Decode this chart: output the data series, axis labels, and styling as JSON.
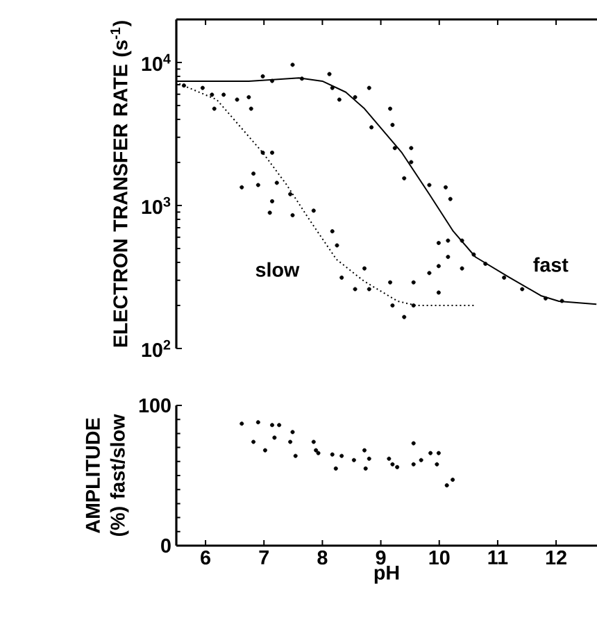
{
  "chart_data": [
    {
      "type": "scatter",
      "ylabel": "ELECTRON TRANSFER RATE (s$^{-1}$)",
      "log": "y",
      "xlim": [
        5.5,
        12.7
      ],
      "ylim": [
        100,
        20000
      ],
      "xticks": [
        6,
        7,
        8,
        9,
        10,
        11,
        12
      ],
      "yticks": [
        {
          "value": 100,
          "label": "10$^{2}$"
        },
        {
          "value": 1000,
          "label": "10$^{3}$"
        },
        {
          "value": 10000,
          "label": "10$^{4}$"
        }
      ],
      "tick_labels": "y",
      "annotations": [
        "slow",
        "fast"
      ],
      "marker": "circle",
      "series": [
        {
          "color": "#000000",
          "x": [
            5.63,
            5.95,
            6.11,
            6.15,
            6.31,
            6.54,
            6.74,
            6.78,
            6.98,
            7.14,
            7.49,
            7.65,
            8.12,
            8.17,
            8.29,
            8.56,
            8.8,
            8.84,
            9.16,
            9.2,
            9.24,
            9.52,
            9.52,
            9.4,
            9.83,
            10.11,
            10.19,
            6.98,
            7.14,
            6.62,
            6.82,
            6.9,
            7.22,
            7.14,
            7.1,
            7.45,
            7.49,
            7.85,
            8.17,
            8.25,
            8.72,
            8.33,
            8.56,
            8.8,
            9.16,
            9.2,
            9.4,
            9.56,
            9.56,
            9.83,
            9.99,
            9.99,
            9.99,
            10.15,
            10.39,
            10.15,
            10.39,
            10.59,
            10.79,
            11.11,
            11.42,
            11.82,
            12.1
          ],
          "values": [
            6900,
            6640,
            5950,
            4750,
            5950,
            5500,
            5720,
            4750,
            8000,
            7430,
            9630,
            7710,
            8300,
            6640,
            5500,
            5720,
            6640,
            3520,
            4750,
            3660,
            2520,
            2520,
            2010,
            1550,
            1390,
            1340,
            1110,
            2340,
            2340,
            1340,
            1670,
            1390,
            1440,
            1070,
            890,
            1200,
            855,
            920,
            660,
            526,
            363,
            313,
            260,
            260,
            290,
            200,
            166,
            200,
            290,
            337,
            377,
            246,
            547,
            568,
            568,
            437,
            363,
            454,
            391,
            313,
            260,
            224,
            215
          ]
        },
        {
          "type": "line",
          "color": "#000000",
          "marker": "none",
          "line_style": "solid",
          "x": [
            5.5,
            6.74,
            7.2,
            7.6,
            8.0,
            8.4,
            8.71,
            9.36,
            9.83,
            10.24,
            10.62,
            11.19,
            11.74,
            12.05,
            12.69
          ],
          "values": [
            7400,
            7400,
            7600,
            7800,
            7400,
            6200,
            4800,
            2340,
            1200,
            660,
            436,
            316,
            234,
            214,
            204
          ]
        },
        {
          "type": "line",
          "color": "#000000",
          "marker": "none",
          "line_style": "dotted",
          "x": [
            5.55,
            6.19,
            6.57,
            6.98,
            7.38,
            7.76,
            8.24,
            8.71,
            9.29,
            9.6,
            9.9,
            10.62
          ],
          "values": [
            7100,
            5500,
            3650,
            2340,
            1410,
            815,
            420,
            296,
            214,
            200,
            200,
            200
          ]
        }
      ]
    },
    {
      "type": "scatter",
      "ylabel": "AMPLITUDE (%) fast/slow",
      "xlabel": "pH",
      "xlim": [
        5.5,
        12.7
      ],
      "ylim": [
        0,
        100
      ],
      "xticks": [
        6,
        7,
        8,
        9,
        10,
        11,
        12
      ],
      "yticks": [
        0,
        100
      ],
      "marker": "circle",
      "series": [
        {
          "color": "#000000",
          "x": [
            6.62,
            6.9,
            6.82,
            7.02,
            7.14,
            7.26,
            7.18,
            7.45,
            7.49,
            7.54,
            7.85,
            7.89,
            7.93,
            8.17,
            8.23,
            8.33,
            8.54,
            8.72,
            8.8,
            8.74,
            9.14,
            9.2,
            9.28,
            9.56,
            9.56,
            9.69,
            9.85,
            9.99,
            9.96,
            10.13,
            10.23
          ],
          "values": [
            87,
            88,
            74,
            68,
            86,
            86,
            77,
            74,
            81,
            64,
            74,
            68,
            66,
            65,
            55,
            64,
            61,
            68,
            62,
            55,
            62,
            58,
            56,
            73,
            58,
            61,
            66,
            66,
            58,
            43,
            47
          ]
        }
      ]
    }
  ]
}
